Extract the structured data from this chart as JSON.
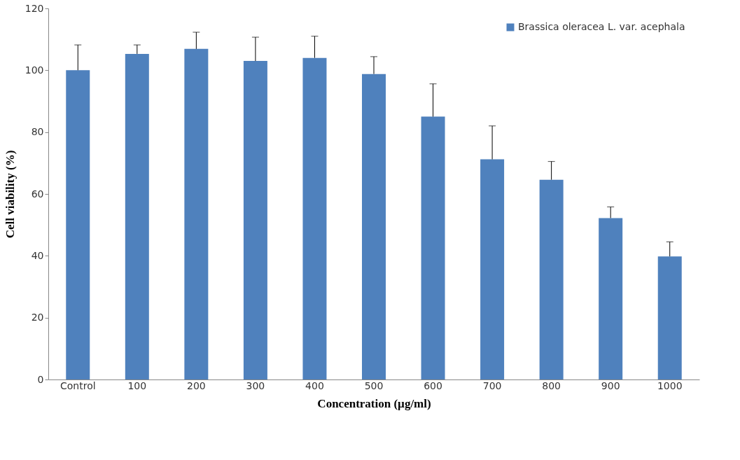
{
  "chart_data": {
    "type": "bar",
    "xlabel": "Concentration (µg/ml)",
    "ylabel": "Cell viability (%)",
    "categories": [
      "Control",
      "100",
      "200",
      "300",
      "400",
      "500",
      "600",
      "700",
      "800",
      "900",
      "1000"
    ],
    "series": [
      {
        "name": "Brassica oleracea L. var. acephala",
        "color": "#4f81bd",
        "values": [
          100,
          105.3,
          106.9,
          103,
          104,
          98.8,
          85,
          71.2,
          64.6,
          52.2,
          39.8
        ],
        "errors": [
          [
            100,
            108.2
          ],
          [
            105.3,
            108.2
          ],
          [
            106.9,
            112.3
          ],
          [
            103,
            110.7
          ],
          [
            104,
            111
          ],
          [
            98.8,
            104.4
          ],
          [
            85,
            95.6
          ],
          [
            71.2,
            82
          ],
          [
            64.6,
            70.5
          ],
          [
            52.2,
            55.8
          ],
          [
            39.8,
            44.5
          ]
        ]
      }
    ],
    "ylim": [
      0,
      120
    ],
    "yticks": [
      0,
      20,
      40,
      60,
      80,
      100,
      120
    ],
    "grid": false,
    "legend": "top right"
  }
}
